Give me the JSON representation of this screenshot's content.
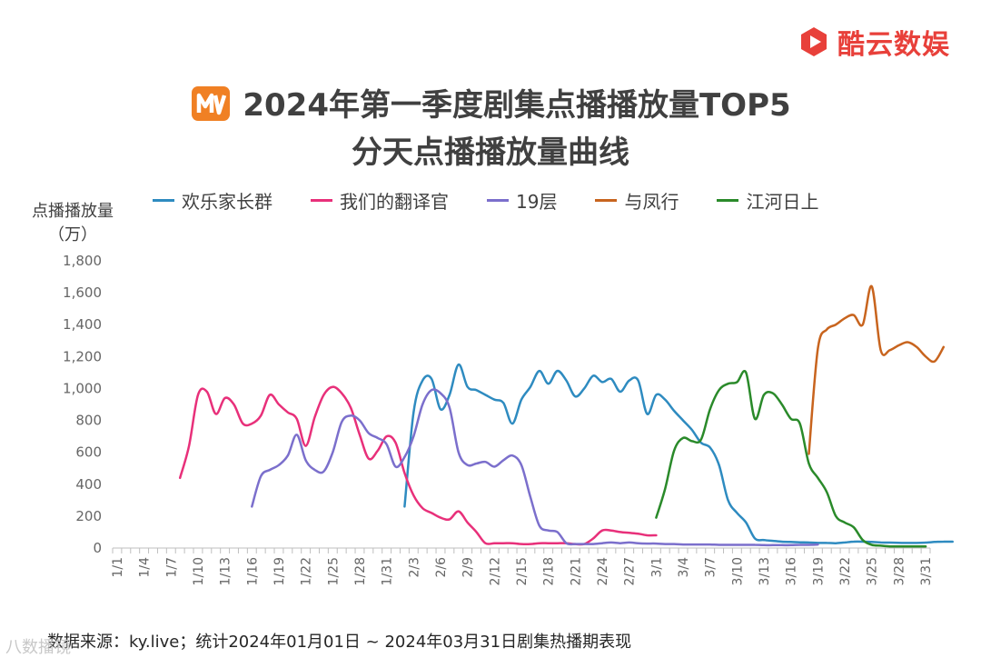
{
  "brand": {
    "name": "酷云数娱",
    "color": "#e8403a",
    "logo_icon": "play-logo-icon"
  },
  "title": {
    "line1": "2024年第一季度剧集点播播放量TOP5",
    "line2": "分天点播播放量曲线",
    "platform_icon": "mango-tv-logo-icon"
  },
  "source_note": "数据来源：ky.live；统计2024年01月01日 ~ 2024年03月31日剧集热播期表现",
  "watermark": "八数播镜",
  "chart_data": {
    "type": "line",
    "ylabel_line1": "点播播放量",
    "ylabel_line2": "（万）",
    "ylim": [
      0,
      1800
    ],
    "yticks": [
      0,
      200,
      400,
      600,
      800,
      1000,
      1200,
      1400,
      1600,
      1800
    ],
    "ytick_labels": [
      "0",
      "200",
      "400",
      "600",
      "800",
      "1,000",
      "1,200",
      "1,400",
      "1,600",
      "1,800"
    ],
    "xtick_labels": [
      "1/1",
      "1/4",
      "1/7",
      "1/10",
      "1/13",
      "1/16",
      "1/19",
      "1/22",
      "1/25",
      "1/28",
      "1/31",
      "2/3",
      "2/6",
      "2/9",
      "2/12",
      "2/15",
      "2/18",
      "2/21",
      "2/24",
      "2/27",
      "3/1",
      "3/4",
      "3/7",
      "3/10",
      "3/13",
      "3/16",
      "3/19",
      "3/22",
      "3/25",
      "3/28",
      "3/31"
    ],
    "legend_position": "top",
    "grid": false,
    "series": [
      {
        "name": "欢乐家长群",
        "color": "#2e8bc0",
        "x_start": "2/2",
        "values": [
          260,
          850,
          1050,
          1060,
          870,
          960,
          1150,
          1010,
          990,
          960,
          930,
          910,
          780,
          930,
          1010,
          1110,
          1030,
          1110,
          1050,
          950,
          1000,
          1080,
          1040,
          1060,
          980,
          1050,
          1050,
          840,
          960,
          930,
          860,
          800,
          740,
          660,
          630,
          520,
          300,
          220,
          160,
          60,
          50,
          45,
          40,
          38,
          36,
          35,
          32,
          32,
          30,
          35,
          40,
          40,
          38,
          35,
          34,
          33,
          32,
          32,
          34,
          38,
          40,
          40
        ]
      },
      {
        "name": "我们的翻译官",
        "color": "#e8307a",
        "x_start": "1/8",
        "values": [
          440,
          640,
          960,
          980,
          840,
          940,
          900,
          780,
          780,
          830,
          960,
          900,
          850,
          810,
          640,
          820,
          960,
          1010,
          970,
          880,
          710,
          560,
          610,
          700,
          660,
          470,
          330,
          250,
          220,
          190,
          180,
          230,
          160,
          100,
          30,
          30,
          30,
          30,
          25,
          25,
          30,
          30,
          30,
          30,
          25,
          25,
          60,
          110,
          110,
          100,
          95,
          90,
          80,
          80
        ]
      },
      {
        "name": "19层",
        "color": "#7b6fcc",
        "x_start": "1/16",
        "values": [
          260,
          450,
          490,
          520,
          580,
          710,
          550,
          490,
          480,
          600,
          790,
          830,
          800,
          720,
          690,
          650,
          510,
          570,
          700,
          900,
          990,
          970,
          880,
          600,
          520,
          530,
          540,
          510,
          550,
          580,
          520,
          320,
          140,
          110,
          100,
          30,
          25,
          25,
          25,
          30,
          35,
          30,
          35,
          30,
          28,
          28,
          25,
          25,
          22,
          22,
          22,
          22,
          20,
          20,
          20,
          20,
          20,
          18,
          18,
          18,
          18,
          20,
          20,
          22
        ]
      },
      {
        "name": "与凤行",
        "color": "#c8641e",
        "x_start": "3/18",
        "values": [
          590,
          1250,
          1370,
          1400,
          1440,
          1460,
          1400,
          1640,
          1240,
          1240,
          1270,
          1290,
          1260,
          1200,
          1170,
          1260
        ]
      },
      {
        "name": "江河日上",
        "color": "#2a8a2a",
        "x_start": "3/1",
        "values": [
          190,
          370,
          610,
          690,
          670,
          680,
          870,
          990,
          1030,
          1040,
          1100,
          810,
          960,
          970,
          900,
          810,
          780,
          530,
          440,
          350,
          200,
          160,
          130,
          50,
          20,
          15,
          10,
          10,
          10,
          10,
          10
        ]
      }
    ]
  }
}
